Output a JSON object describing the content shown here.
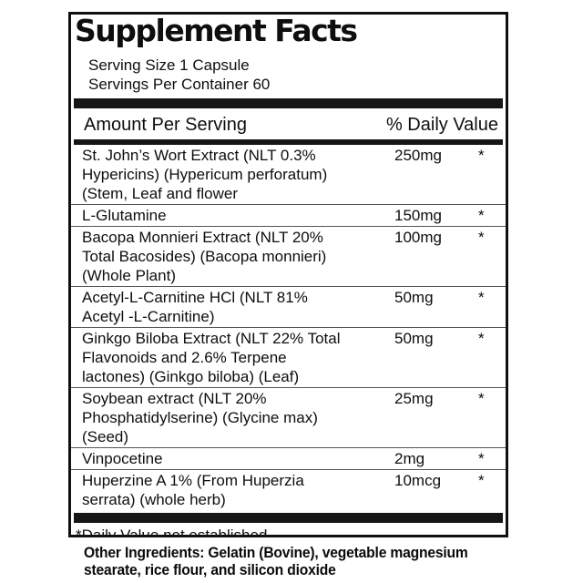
{
  "label": {
    "title": "Supplement Facts",
    "serving_size": "Serving Size 1 Capsule",
    "servings_per_container": "Servings Per Container 60",
    "header": {
      "amount_column": "Amount Per Serving",
      "daily_value_column": "% Daily Value"
    },
    "rows": [
      {
        "name": "St. John’s Wort Extract (NLT 0.3%\nHypericins) (Hypericum perforatum)\n(Stem, Leaf and flower",
        "amount": "250mg",
        "daily_value": "*"
      },
      {
        "name": "L-Glutamine",
        "amount": "150mg",
        "daily_value": "*"
      },
      {
        "name": "Bacopa Monnieri Extract (NLT 20%\nTotal Bacosides) (Bacopa monnieri)\n(Whole Plant)",
        "amount": "100mg",
        "daily_value": "*"
      },
      {
        "name": "Acetyl-L-Carnitine HCl (NLT 81%\nAcetyl -L-Carnitine)",
        "amount": "50mg",
        "daily_value": "*"
      },
      {
        "name": "Ginkgo Biloba Extract (NLT 22% Total\nFlavonoids and 2.6% Terpene\nlactones) (Ginkgo biloba) (Leaf)",
        "amount": "50mg",
        "daily_value": "*"
      },
      {
        "name": "Soybean extract (NLT 20%\nPhosphatidylserine) (Glycine max)\n(Seed)",
        "amount": "25mg",
        "daily_value": "*"
      },
      {
        "name": "Vinpocetine",
        "amount": "2mg",
        "daily_value": "*"
      },
      {
        "name": "Huperzine A 1% (From Huperzia\nserrata) (whole herb)",
        "amount": "10mcg",
        "daily_value": "*"
      }
    ],
    "footnote": "*Daily Value not established.",
    "other_ingredients": "Other Ingredients: Gelatin (Bovine), vegetable magnesium\nstearate, rice flour, and silicon dioxide",
    "colors": {
      "ink": "#0e0e0e",
      "bar": "#161616",
      "separator": "#565656",
      "background": "#ffffff"
    }
  }
}
